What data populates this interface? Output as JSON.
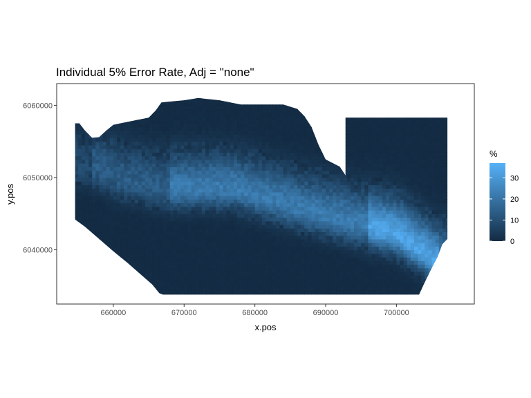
{
  "chart_data": {
    "type": "heatmap",
    "title": "Individual 5% Error Rate, Adj = \"none\"",
    "xlabel": "x.pos",
    "ylabel": "y.pos",
    "xlim": [
      652000,
      711000
    ],
    "ylim": [
      6032500,
      6063000
    ],
    "x_ticks": [
      660000,
      670000,
      680000,
      690000,
      700000
    ],
    "x_tick_labels": [
      "660000",
      "670000",
      "680000",
      "690000",
      "700000"
    ],
    "y_ticks": [
      6040000,
      6050000,
      6060000
    ],
    "y_tick_labels": [
      "6040000",
      "6050000",
      "6060000"
    ],
    "grid": false,
    "legend": {
      "title": "%",
      "placement": "right",
      "range": [
        0,
        37
      ],
      "ticks": [
        0,
        10,
        20,
        30
      ],
      "tick_labels": [
        "0",
        "10",
        "20",
        "30"
      ],
      "color_low": "#132B43",
      "color_high": "#56B1F7"
    },
    "region": {
      "top_boundary": [
        [
          654600,
          6057500
        ],
        [
          655200,
          6057500
        ],
        [
          656000,
          6056500
        ],
        [
          657000,
          6055500
        ],
        [
          658000,
          6055600
        ],
        [
          659000,
          6056500
        ],
        [
          660000,
          6057300
        ],
        [
          662000,
          6057700
        ],
        [
          665000,
          6058300
        ],
        [
          666000,
          6059300
        ],
        [
          666800,
          6060400
        ],
        [
          670000,
          6060700
        ],
        [
          672000,
          6061000
        ],
        [
          675000,
          6060700
        ],
        [
          678000,
          6060100
        ],
        [
          684000,
          6060100
        ],
        [
          686000,
          6059500
        ],
        [
          687000,
          6058500
        ],
        [
          688000,
          6057000
        ],
        [
          689000,
          6054500
        ],
        [
          690000,
          6052500
        ],
        [
          692000,
          6051500
        ],
        [
          692800,
          6050300
        ],
        [
          692800,
          6058300
        ],
        [
          707200,
          6058300
        ],
        [
          707200,
          6041500
        ],
        [
          706500,
          6040800
        ],
        [
          705800,
          6039000
        ],
        [
          705000,
          6037500
        ],
        [
          704000,
          6035500
        ],
        [
          703200,
          6033800
        ]
      ],
      "bottom_boundary": [
        [
          654600,
          6057500
        ],
        [
          654600,
          6044200
        ],
        [
          656000,
          6043200
        ],
        [
          658000,
          6041500
        ],
        [
          660000,
          6039800
        ],
        [
          662000,
          6038200
        ],
        [
          664000,
          6036500
        ],
        [
          665500,
          6035200
        ],
        [
          666500,
          6034000
        ],
        [
          667000,
          6033800
        ],
        [
          703200,
          6033800
        ]
      ],
      "hotspot_ridge": [
        [
          657000,
          6051500
        ],
        [
          662000,
          6049500
        ],
        [
          667000,
          6048500
        ],
        [
          672000,
          6048500
        ],
        [
          677000,
          6048500
        ],
        [
          682000,
          6047000
        ],
        [
          687000,
          6045500
        ],
        [
          692000,
          6044200
        ],
        [
          697000,
          6043000
        ],
        [
          700000,
          6042200
        ],
        [
          702000,
          6040800
        ],
        [
          704000,
          6039500
        ],
        [
          705500,
          6038300
        ]
      ],
      "hotspot_peak_x": [
        696000,
        706000
      ],
      "peak_value": 37,
      "base_value": 0
    }
  }
}
